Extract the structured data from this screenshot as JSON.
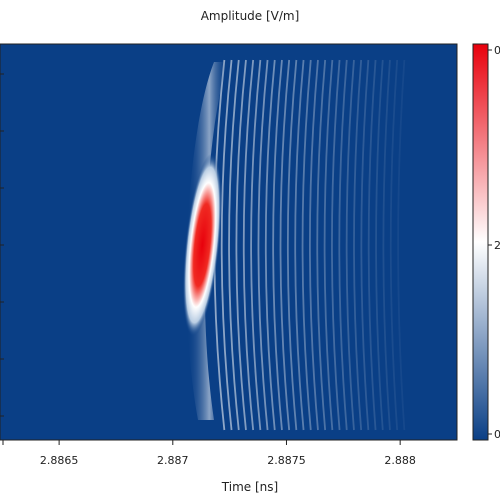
{
  "chart_data": {
    "type": "heatmap",
    "title": "Amplitude [V/m]",
    "xlabel": "Time [ns]",
    "ylabel": "",
    "x_ticks": [
      2.8865,
      2.887,
      2.8875,
      2.888
    ],
    "x_tick_labels": [
      "2.8865",
      "2.887",
      "2.8875",
      "2.888"
    ],
    "xlim": [
      2.88624,
      2.88825
    ],
    "grid": false,
    "legend": "colorbar right",
    "colormap": [
      "#0a3f86",
      "#ffffff",
      "#e8000c"
    ],
    "colorbar_tick_labels": [
      "0",
      "2",
      "0"
    ],
    "pulse": {
      "peak_time": 2.88713,
      "peak_color": "#e8000c",
      "background_color": "#0a3f86",
      "trailing_fringes": true
    }
  }
}
